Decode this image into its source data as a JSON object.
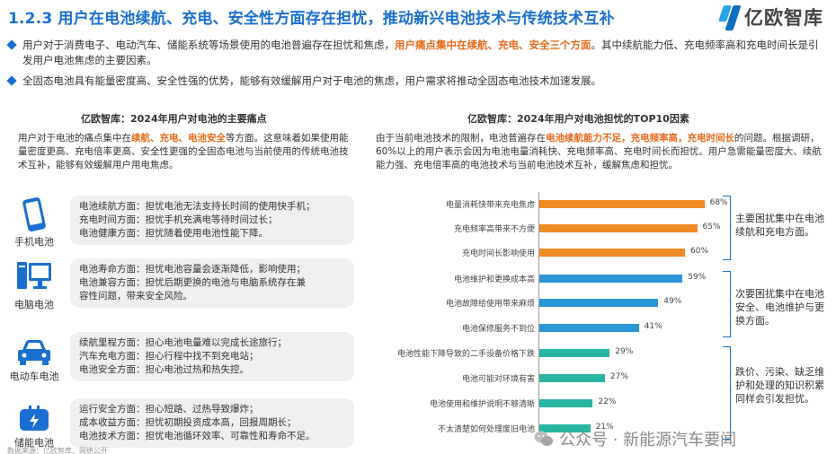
{
  "header": {
    "title": "1.2.3 用户在电池续航、充电、安全性方面存在担忧，推动新兴电池技术与传统技术互补",
    "logo_text": "亿欧智库"
  },
  "bullets": [
    {
      "pre": "用户对于消费电子、电动汽车、储能系统等场景使用的电池普遍存在担忧和焦虑，",
      "highlight": "用户痛点集中在续航、充电、安全三个方面",
      "post": "。其中续航能力低、充电频率高和充电时间长是引发用户电池焦虑的主要因素。"
    },
    {
      "pre": "全固态电池具有能量密度高、安全性强的优势，能够有效缓解用户对于电池的焦虑，用户需求将推动全固态电池技术加速发展。",
      "highlight": "",
      "post": ""
    }
  ],
  "left": {
    "title": "亿欧智库：2024年用户对电池的主要痛点",
    "intro_pre": "用户对于电池的痛点集中在",
    "intro_hl": "续航、充电、电池安全",
    "intro_post": "等方面。这意味着如果使用能量密度更高、充电倍率更高、安全性更强的全固态电池与当前使用的传统电池技术互补，能够有效缓解用户用电焦虑。",
    "items": [
      {
        "label": "手机电池",
        "icon": "smartphone-icon",
        "lines": [
          "电池续航方面：担忧电池无法支持长时间的使用快手机；",
          "充电时间方面：担忧手机充满电等待时间过长；",
          "电池健康方面：担忧随着使用电池性能下降。"
        ]
      },
      {
        "label": "电脑电池",
        "icon": "computer-icon",
        "lines": [
          "电池寿命方面：担忧电池容量会逐渐降低，影响使用；",
          "电池兼容方面：担忧后期更换的电池与电脑系统存在兼",
          "容性问题，带来安全风险。"
        ]
      },
      {
        "label": "电动车电池",
        "icon": "car-icon",
        "lines": [
          "续航里程方面：担心电池电量难以完成长途旅行；",
          "汽车充电方面：担心行程中找不到充电站；",
          "电池安全方面：担心电池过热和热失控。"
        ]
      },
      {
        "label": "储能电池",
        "icon": "plug-icon",
        "lines": [
          "运行安全方面：担心短路、过热导致爆炸；",
          "成本收益方面：担忧初期投资成本高，回报周期长；",
          "电池技术方面：担忧电池循环效率、可靠性和寿命不足。"
        ]
      }
    ]
  },
  "right": {
    "title": "亿欧智库：2024年用户对电池担忧的TOP10因素",
    "intro_pre": "由于当前电池技术的限制，电池普遍存在",
    "intro_hl": "电池续航能力不足，充电频率高，充电时间长",
    "intro_post": "的问题。根据调研，60%以上的用户表示会因为电池电量消耗快、充电频率高、充电时间长而担忧。用户急需能量密度大、续航能力强、充电倍率高的电池技术与当前电池技术互补，缓解焦虑和担忧。"
  },
  "chart_data": {
    "type": "bar",
    "orientation": "horizontal",
    "categories": [
      "电量消耗快带来充电焦虑",
      "充电频率高带来不方便",
      "充电时间长影响使用",
      "电池维护和更换成本高",
      "电池故障给使用带来麻烦",
      "电池保修服务不到位",
      "电池性能下降导致的二手设备价格下跌",
      "电池可能对环境有害",
      "电池使用和维护说明不够清晰",
      "不太清楚如何处理废旧电池"
    ],
    "values": [
      68,
      65,
      60,
      59,
      49,
      41,
      29,
      27,
      22,
      21
    ],
    "value_labels": [
      "68%",
      "65%",
      "60%",
      "59%",
      "49%",
      "41%",
      "29%",
      "27%",
      "22%",
      "21%"
    ],
    "group_colors": [
      "#f08a24",
      "#f08a24",
      "#f08a24",
      "#2a96d8",
      "#2a96d8",
      "#2a96d8",
      "#29b5a3",
      "#29b5a3",
      "#29b5a3",
      "#29b5a3"
    ],
    "groups": [
      {
        "text": "主要困扰集中在电池续航和充电方面。"
      },
      {
        "text": "次要困扰集中在电池安全、电池维护与更换方面。"
      },
      {
        "text": "跌价、污染、缺乏维护和处理的知识积累同样会引发担忧。"
      }
    ]
  },
  "watermark": "公众号 · 新能源汽车要闻",
  "source": "数据来源：亿欧智库、网络公开"
}
